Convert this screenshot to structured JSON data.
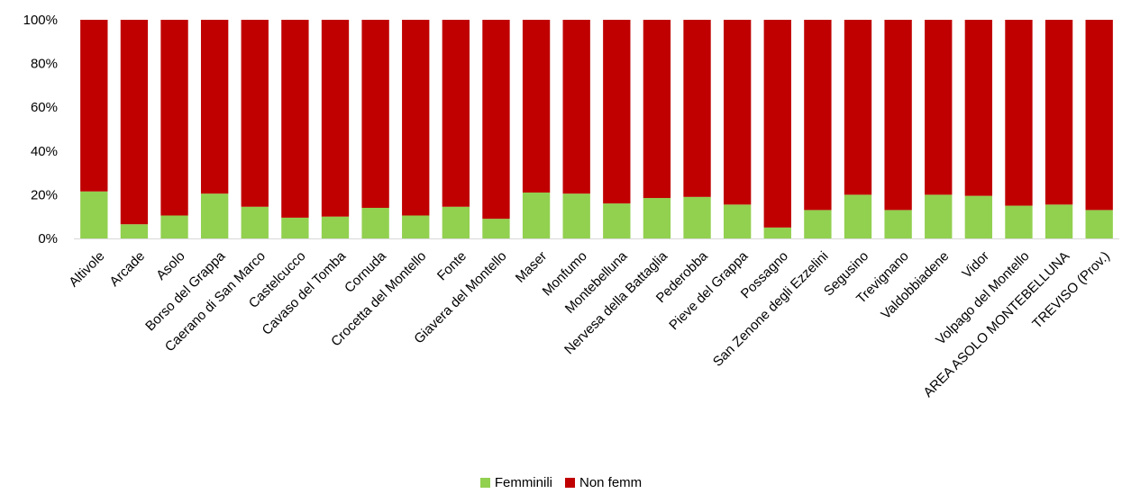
{
  "chart_data": {
    "type": "bar",
    "stacked": true,
    "percent_stacked": true,
    "categories": [
      "Altivole",
      "Arcade",
      "Asolo",
      "Borso del Grappa",
      "Caerano di San Marco",
      "Castelcucco",
      "Cavaso del Tomba",
      "Cornuda",
      "Crocetta del Montello",
      "Fonte",
      "Giavera del Montello",
      "Maser",
      "Monfumo",
      "Montebelluna",
      "Nervesa della Battaglia",
      "Pederobba",
      "Pieve del Grappa",
      "Possagno",
      "San Zenone degli Ezzelini",
      "Segusino",
      "Trevignano",
      "Valdobbiadene",
      "Vidor",
      "Volpago del Montello",
      "AREA ASOLO MONTEBELLUNA",
      "TREVISO (Prov.)"
    ],
    "series": [
      {
        "name": "Femminili",
        "color": "#92d050",
        "values": [
          21.5,
          6.5,
          10.5,
          20.5,
          14.5,
          9.5,
          10,
          14,
          10.5,
          14.5,
          9,
          21,
          20.5,
          16,
          18.5,
          19,
          15.5,
          5,
          13,
          20,
          13,
          20,
          19.5,
          15,
          15.5,
          13
        ]
      },
      {
        "name": "Non femm",
        "color": "#c00000",
        "values": [
          78.5,
          93.5,
          89.5,
          79.5,
          85.5,
          90.5,
          90,
          86,
          89.5,
          85.5,
          91,
          79,
          79.5,
          84,
          81.5,
          81,
          84.5,
          95,
          87,
          80,
          87,
          80,
          80.5,
          85,
          84.5,
          87
        ]
      }
    ],
    "y_ticks": [
      "0%",
      "20%",
      "40%",
      "60%",
      "80%",
      "100%"
    ],
    "ylim": [
      0,
      100
    ],
    "grid": false,
    "legend_position": "bottom"
  }
}
